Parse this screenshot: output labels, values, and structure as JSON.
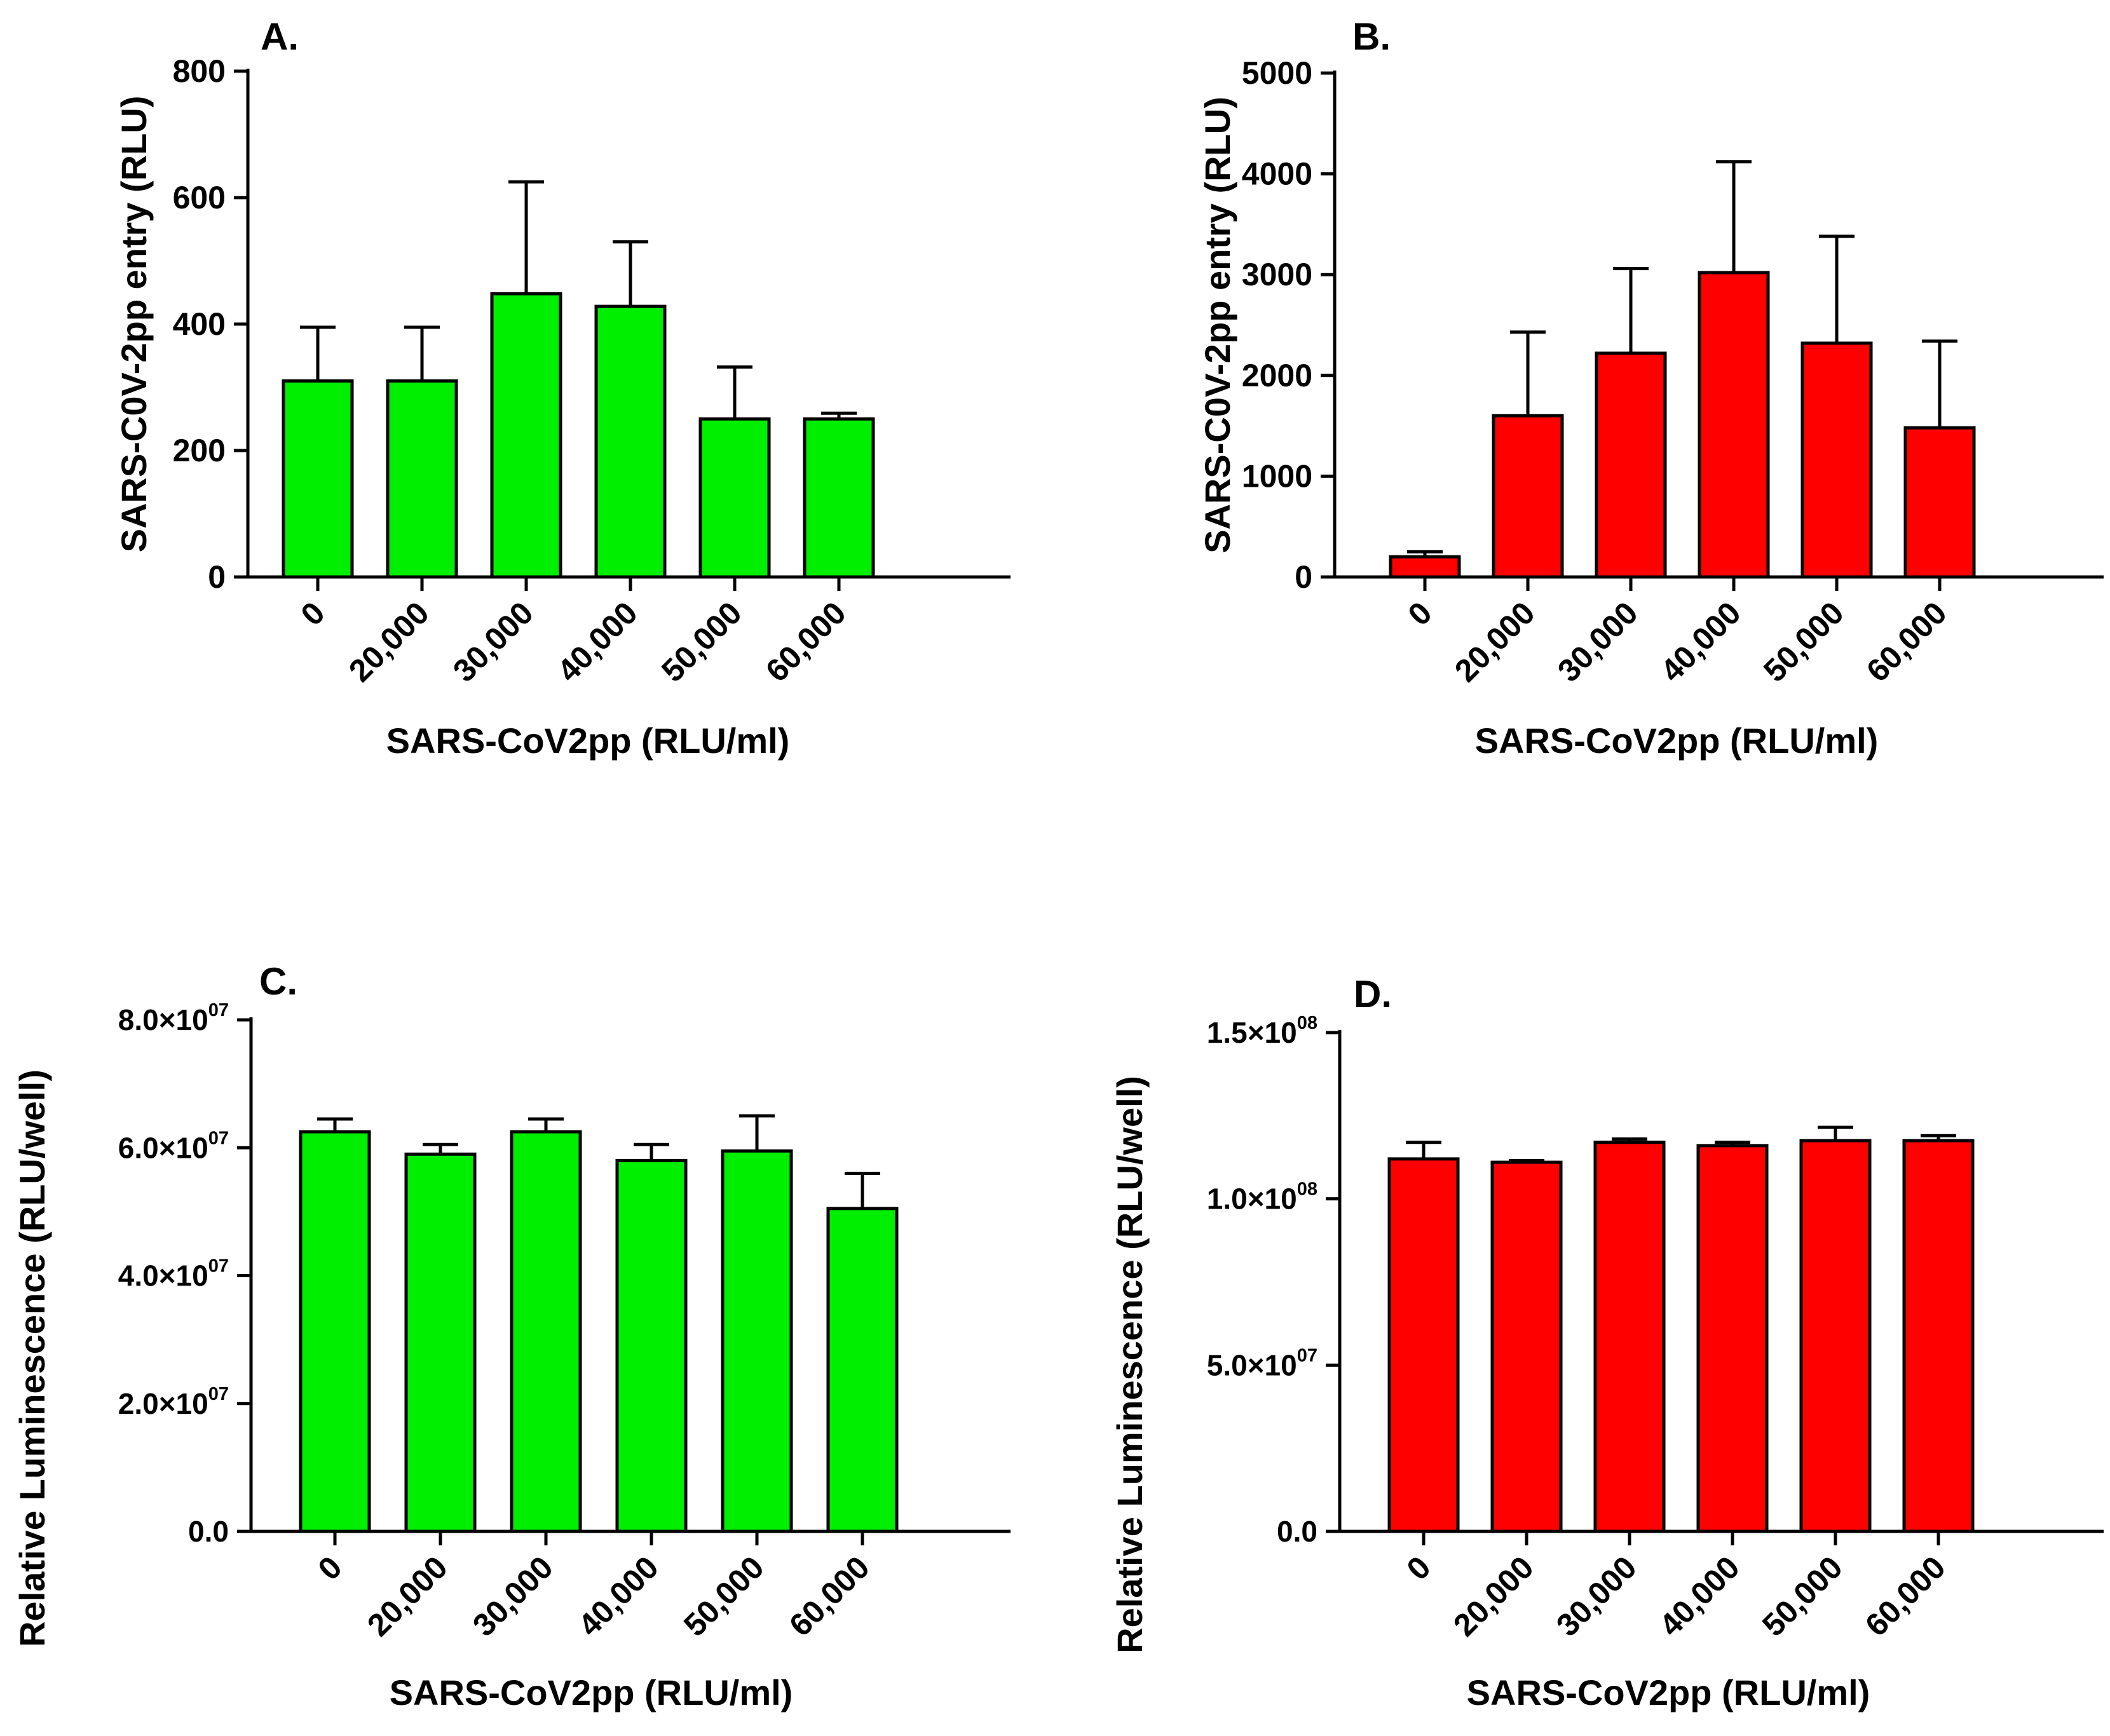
{
  "figure": {
    "colors": {
      "green": "#00ee00",
      "red": "#ff0000",
      "axis": "#000000"
    }
  },
  "chart_data": [
    {
      "id": "A",
      "panel_label": "A.",
      "type": "bar",
      "color": "#00ee00",
      "title": "",
      "xlabel": "SARS-CoV2pp (RLU/ml)",
      "ylabel": "SARS-C0V-2pp entry (RLU)",
      "categories": [
        "0",
        "20,000",
        "30,000",
        "40,000",
        "50,000",
        "60,000"
      ],
      "values": [
        310,
        310,
        448,
        428,
        250,
        250
      ],
      "errors": [
        85,
        85,
        177,
        102,
        82,
        9
      ],
      "ylim": [
        0,
        800
      ],
      "yticks": [
        0,
        200,
        400,
        600,
        800
      ],
      "ytick_labels": [
        "0",
        "200",
        "400",
        "600",
        "800"
      ],
      "grid": false,
      "legend": "none"
    },
    {
      "id": "B",
      "panel_label": "B.",
      "type": "bar",
      "color": "#ff0000",
      "title": "",
      "xlabel": "SARS-CoV2pp (RLU/ml)",
      "ylabel": "SARS-C0V-2pp entry (RLU)",
      "categories": [
        "0",
        "20,000",
        "30,000",
        "40,000",
        "50,000",
        "60,000"
      ],
      "values": [
        200,
        1600,
        2220,
        3020,
        2320,
        1480
      ],
      "errors": [
        50,
        830,
        840,
        1100,
        1060,
        860
      ],
      "ylim": [
        0,
        5000
      ],
      "yticks": [
        0,
        1000,
        2000,
        3000,
        4000,
        5000
      ],
      "ytick_labels": [
        "0",
        "1000",
        "2000",
        "3000",
        "4000",
        "5000"
      ],
      "grid": false,
      "legend": "none"
    },
    {
      "id": "C",
      "panel_label": "C.",
      "type": "bar",
      "color": "#00ee00",
      "title": "",
      "xlabel": "SARS-CoV2pp (RLU/ml)",
      "ylabel": "Relative Luminescence (RLU/well)",
      "categories": [
        "0",
        "20,000",
        "30,000",
        "40,000",
        "50,000",
        "60,000"
      ],
      "values": [
        62500000,
        59000000,
        62500000,
        58000000,
        59500000,
        50500000
      ],
      "errors": [
        2000000,
        1500000,
        2000000,
        2500000,
        5500000,
        5500000
      ],
      "ylim": [
        0,
        80000000
      ],
      "yticks": [
        0,
        20000000,
        40000000,
        60000000,
        80000000
      ],
      "ytick_labels": [
        {
          "mantissa": "0.0",
          "exp": ""
        },
        {
          "mantissa": "2.0×10",
          "exp": "07"
        },
        {
          "mantissa": "4.0×10",
          "exp": "07"
        },
        {
          "mantissa": "6.0×10",
          "exp": "07"
        },
        {
          "mantissa": "8.0×10",
          "exp": "07"
        }
      ],
      "grid": false,
      "legend": "none"
    },
    {
      "id": "D",
      "panel_label": "D.",
      "type": "bar",
      "color": "#ff0000",
      "title": "",
      "xlabel": "SARS-CoV2pp (RLU/ml)",
      "ylabel": "Relative Luminescence (RLU/well)",
      "categories": [
        "0",
        "20,000",
        "30,000",
        "40,000",
        "50,000",
        "60,000"
      ],
      "values": [
        112000000,
        111000000,
        117000000,
        116000000,
        117500000,
        117500000
      ],
      "errors": [
        5000000,
        500000,
        1000000,
        1000000,
        4000000,
        1500000
      ],
      "ylim": [
        0,
        150000000
      ],
      "yticks": [
        0,
        50000000,
        100000000,
        150000000
      ],
      "ytick_labels": [
        {
          "mantissa": "0.0",
          "exp": ""
        },
        {
          "mantissa": "5.0×10",
          "exp": "07"
        },
        {
          "mantissa": "1.0×10",
          "exp": "08"
        },
        {
          "mantissa": "1.5×10",
          "exp": "08"
        }
      ],
      "grid": false,
      "legend": "none"
    }
  ]
}
